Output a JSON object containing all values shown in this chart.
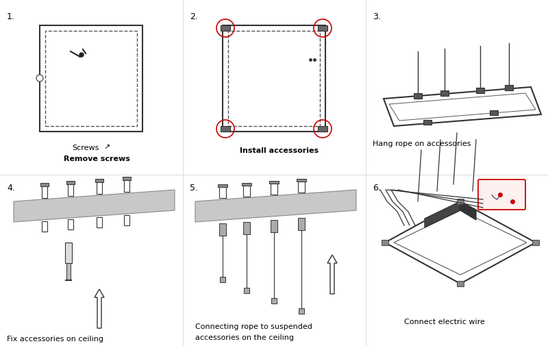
{
  "background_color": "#ffffff",
  "gray_color": "#c8c8c8",
  "red_color": "#cc0000",
  "dark_color": "#222222",
  "step1": {
    "number": "1.",
    "label1": "Screws",
    "label2": "Remove screws"
  },
  "step2": {
    "number": "2.",
    "label1": "Install accessories"
  },
  "step3": {
    "number": "3.",
    "label1": "Hang rope on accessories"
  },
  "step4": {
    "number": "4.",
    "label1": "Fix accessories on ceiling"
  },
  "step5": {
    "number": "5.",
    "label1": "Connecting rope to suspended",
    "label2": "accessories on the ceiling"
  },
  "step6": {
    "number": "6.",
    "label1": "Connect electric wire"
  }
}
